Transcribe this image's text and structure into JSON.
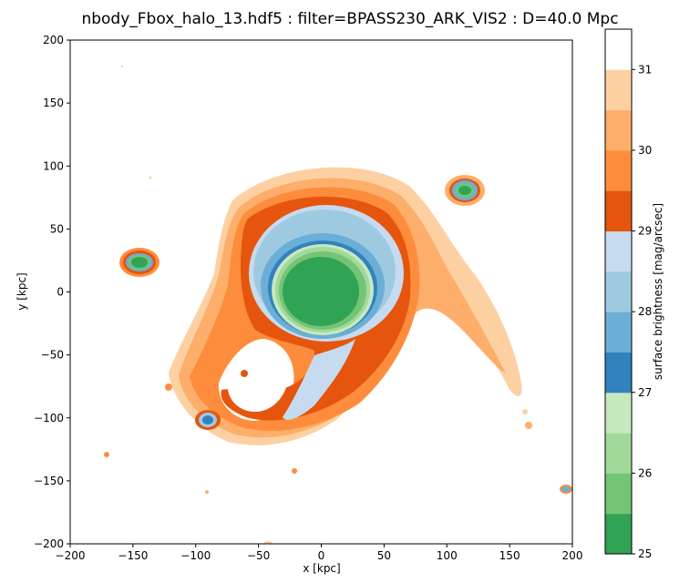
{
  "chart_data": {
    "type": "heatmap",
    "title": "nbody_Fbox_halo_13.hdf5 : filter=BPASS230_ARK_VIS2 : D=40.0 Mpc",
    "xlabel": "x [kpc]",
    "ylabel": "y [kpc]",
    "xlim": [
      -200,
      200
    ],
    "ylim": [
      -200,
      200
    ],
    "xticks": [
      "−200",
      "−150",
      "−100",
      "−50",
      "0",
      "50",
      "100",
      "150",
      "200"
    ],
    "yticks": [
      "−200",
      "−150",
      "−100",
      "−50",
      "0",
      "50",
      "100",
      "150",
      "200"
    ],
    "xtick_values": [
      -200,
      -150,
      -100,
      -50,
      0,
      50,
      100,
      150,
      200
    ],
    "ytick_values": [
      -200,
      -150,
      -100,
      -50,
      0,
      50,
      100,
      150,
      200
    ],
    "grid": false,
    "colorbar": {
      "label": "surface brightness [mag/arcsec]",
      "range": [
        25,
        31.5
      ],
      "ticks": [
        "25",
        "26",
        "27",
        "28",
        "29",
        "30",
        "31"
      ],
      "tick_values": [
        25,
        26,
        27,
        28,
        29,
        30,
        31
      ],
      "levels": [
        {
          "from": 25.0,
          "to": 25.5,
          "color": "#31a354"
        },
        {
          "from": 25.5,
          "to": 26.0,
          "color": "#74c476"
        },
        {
          "from": 26.0,
          "to": 26.5,
          "color": "#a1d99b"
        },
        {
          "from": 26.5,
          "to": 27.0,
          "color": "#c7e9c0"
        },
        {
          "from": 27.0,
          "to": 27.5,
          "color": "#3182bd"
        },
        {
          "from": 27.5,
          "to": 28.0,
          "color": "#6baed6"
        },
        {
          "from": 28.0,
          "to": 28.5,
          "color": "#9ecae1"
        },
        {
          "from": 28.5,
          "to": 29.0,
          "color": "#c6dbef"
        },
        {
          "from": 29.0,
          "to": 29.5,
          "color": "#e6550d"
        },
        {
          "from": 29.5,
          "to": 30.0,
          "color": "#fd8d3c"
        },
        {
          "from": 30.0,
          "to": 30.5,
          "color": "#fdae6b"
        },
        {
          "from": 30.5,
          "to": 31.0,
          "color": "#fdd0a2"
        },
        {
          "from": 31.0,
          "to": 31.5,
          "color": "#ffffff"
        }
      ]
    },
    "features": [
      {
        "name": "central-galaxy",
        "cx": 0,
        "cy": 0,
        "core_radius": 40,
        "halo_extent": 90
      },
      {
        "name": "satellite-left",
        "cx": -145,
        "cy": 23,
        "core_radius": 8
      },
      {
        "name": "satellite-top-right",
        "cx": 113,
        "cy": 81,
        "core_radius": 7
      },
      {
        "name": "satellite-bottom-left",
        "cx": -90,
        "cy": -102,
        "core_radius": 4
      },
      {
        "name": "satellite-bottom-right",
        "cx": 194,
        "cy": -157,
        "core_radius": 3
      }
    ]
  }
}
